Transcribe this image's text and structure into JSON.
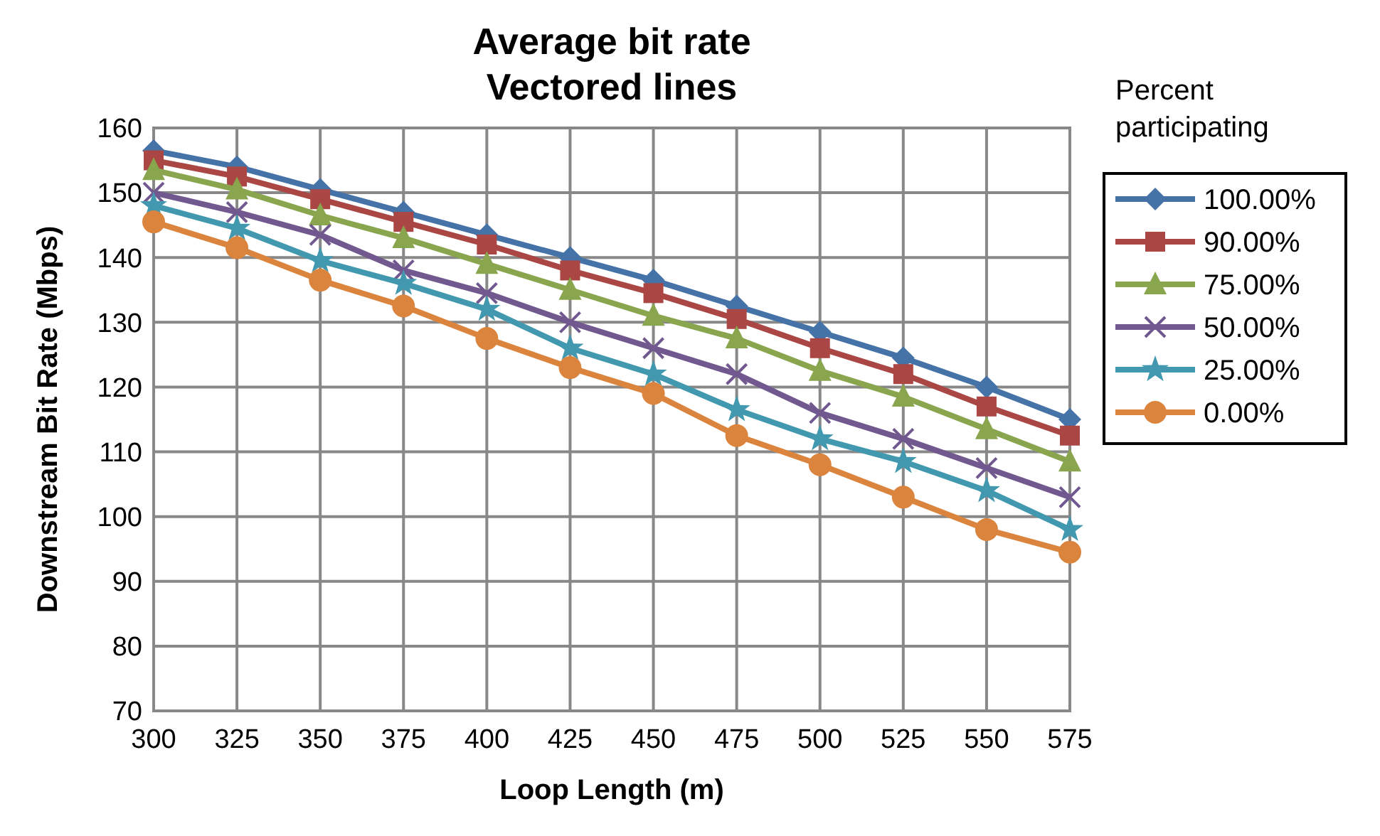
{
  "chart_data": {
    "type": "line",
    "title": "Average bit rate\nVectored lines",
    "xlabel": "Loop Length (m)",
    "ylabel": "Downstream Bit Rate (Mbps)",
    "legend_title": "Percent participating",
    "legend": "right",
    "grid": true,
    "x": [
      300,
      325,
      350,
      375,
      400,
      425,
      450,
      475,
      500,
      525,
      550,
      575
    ],
    "xlim": [
      300,
      575
    ],
    "xticks": [
      300,
      325,
      350,
      375,
      400,
      425,
      450,
      475,
      500,
      525,
      550,
      575
    ],
    "ylim": [
      70,
      160
    ],
    "yticks": [
      70,
      80,
      90,
      100,
      110,
      120,
      130,
      140,
      150,
      160
    ],
    "series": [
      {
        "name": "100.00%",
        "color": "#4572a7",
        "marker": "diamond",
        "values": [
          156.5,
          154,
          150.5,
          147,
          143.5,
          140,
          136.5,
          132.5,
          128.5,
          124.5,
          120,
          115
        ]
      },
      {
        "name": "90.00%",
        "color": "#aa4643",
        "marker": "square",
        "values": [
          155,
          152.5,
          149,
          145.5,
          142,
          138,
          134.5,
          130.5,
          126,
          122,
          117,
          112.5
        ]
      },
      {
        "name": "75.00%",
        "color": "#89a54e",
        "marker": "triangle",
        "values": [
          153.5,
          150.5,
          146.5,
          143,
          139,
          135,
          131,
          127.5,
          122.5,
          118.5,
          113.5,
          108.5
        ]
      },
      {
        "name": "50.00%",
        "color": "#71588f",
        "marker": "cross",
        "values": [
          150,
          147,
          143.5,
          138,
          134.5,
          130,
          126,
          122,
          116,
          112,
          107.5,
          103
        ]
      },
      {
        "name": "25.00%",
        "color": "#4198af",
        "marker": "star",
        "values": [
          148,
          144.5,
          139.5,
          136,
          132,
          126,
          122,
          116.5,
          112,
          108.5,
          104,
          98
        ]
      },
      {
        "name": "0.00%",
        "color": "#db843d",
        "marker": "circle",
        "values": [
          145.5,
          141.5,
          136.5,
          132.5,
          127.5,
          123,
          119,
          112.5,
          108,
          103,
          98,
          94.5
        ]
      }
    ]
  }
}
